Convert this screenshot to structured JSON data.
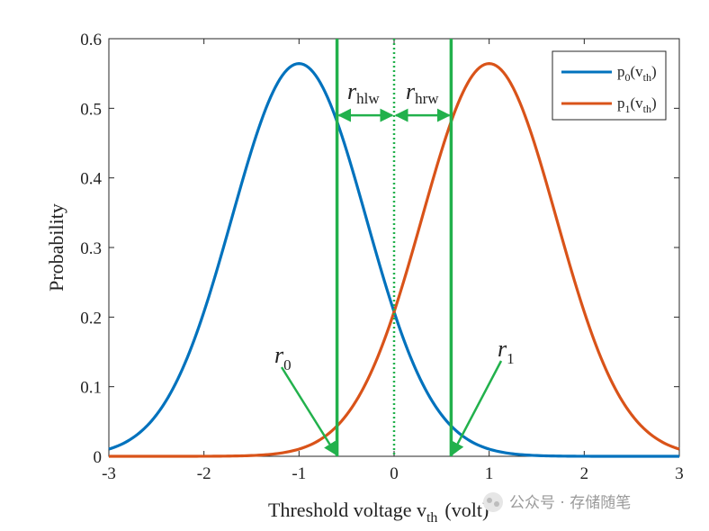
{
  "chart_data": {
    "type": "line",
    "title": "",
    "xlabel": "Threshold voltage v",
    "xlabel_sub": "th",
    "xlabel_suffix": "(volt)",
    "ylabel": "Probability",
    "xlim": [
      -3,
      3
    ],
    "ylim": [
      0,
      0.6
    ],
    "xticks": [
      -3,
      -2,
      -1,
      0,
      1,
      2,
      3
    ],
    "xtick_labels": [
      "-3",
      "-2",
      "-1",
      "0",
      "1",
      "2",
      "3"
    ],
    "yticks": [
      0,
      0.1,
      0.2,
      0.3,
      0.4,
      0.5,
      0.6
    ],
    "ytick_labels": [
      "0",
      "0.1",
      "0.2",
      "0.3",
      "0.4",
      "0.5",
      "0.6"
    ],
    "grid": false,
    "legend_position": "top-right",
    "series": [
      {
        "name": "p0(vth)",
        "label_main": "p",
        "label_sub": "0",
        "label_arg": "v",
        "label_arg_sub": "th",
        "mean": -1,
        "std": 0.707,
        "color": "#0072BD"
      },
      {
        "name": "p1(vth)",
        "label_main": "p",
        "label_sub": "1",
        "label_arg": "v",
        "label_arg_sub": "th",
        "mean": 1,
        "std": 0.707,
        "color": "#D95319"
      }
    ],
    "vertical_lines": [
      {
        "name": "r0",
        "x": -0.6,
        "style": "solid",
        "color": "#22B14C"
      },
      {
        "name": "center",
        "x": 0,
        "style": "dotted",
        "color": "#22B14C"
      },
      {
        "name": "r1",
        "x": 0.6,
        "style": "solid",
        "color": "#22B14C"
      }
    ],
    "width_arrow_y": 0.49,
    "annotations": [
      {
        "name": "r-hlw",
        "main": "r",
        "sub": "hlw"
      },
      {
        "name": "r-hrw",
        "main": "r",
        "sub": "hrw"
      },
      {
        "name": "r-0",
        "main": "r",
        "sub": "0"
      },
      {
        "name": "r-1",
        "main": "r",
        "sub": "1"
      }
    ]
  },
  "watermark": "公众号 · 存储随笔"
}
